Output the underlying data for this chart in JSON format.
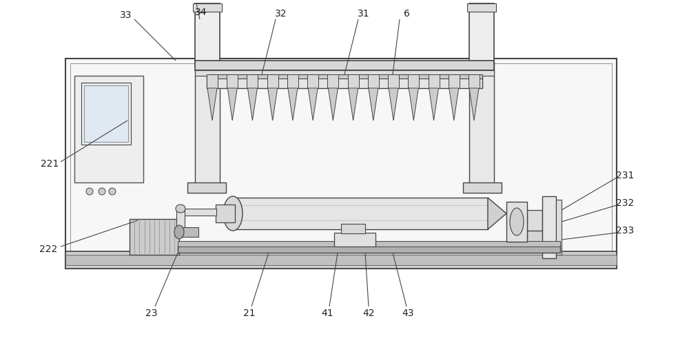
{
  "fig_width": 10.0,
  "fig_height": 5.01,
  "bg_color": "#ffffff",
  "lc": "#444444",
  "lc2": "#666666",
  "fc_light": "#f0f0f0",
  "fc_mid": "#e0e0e0",
  "fc_dark": "#c8c8c8",
  "fc_darker": "#aaaaaa",
  "fc_white": "#ffffff"
}
